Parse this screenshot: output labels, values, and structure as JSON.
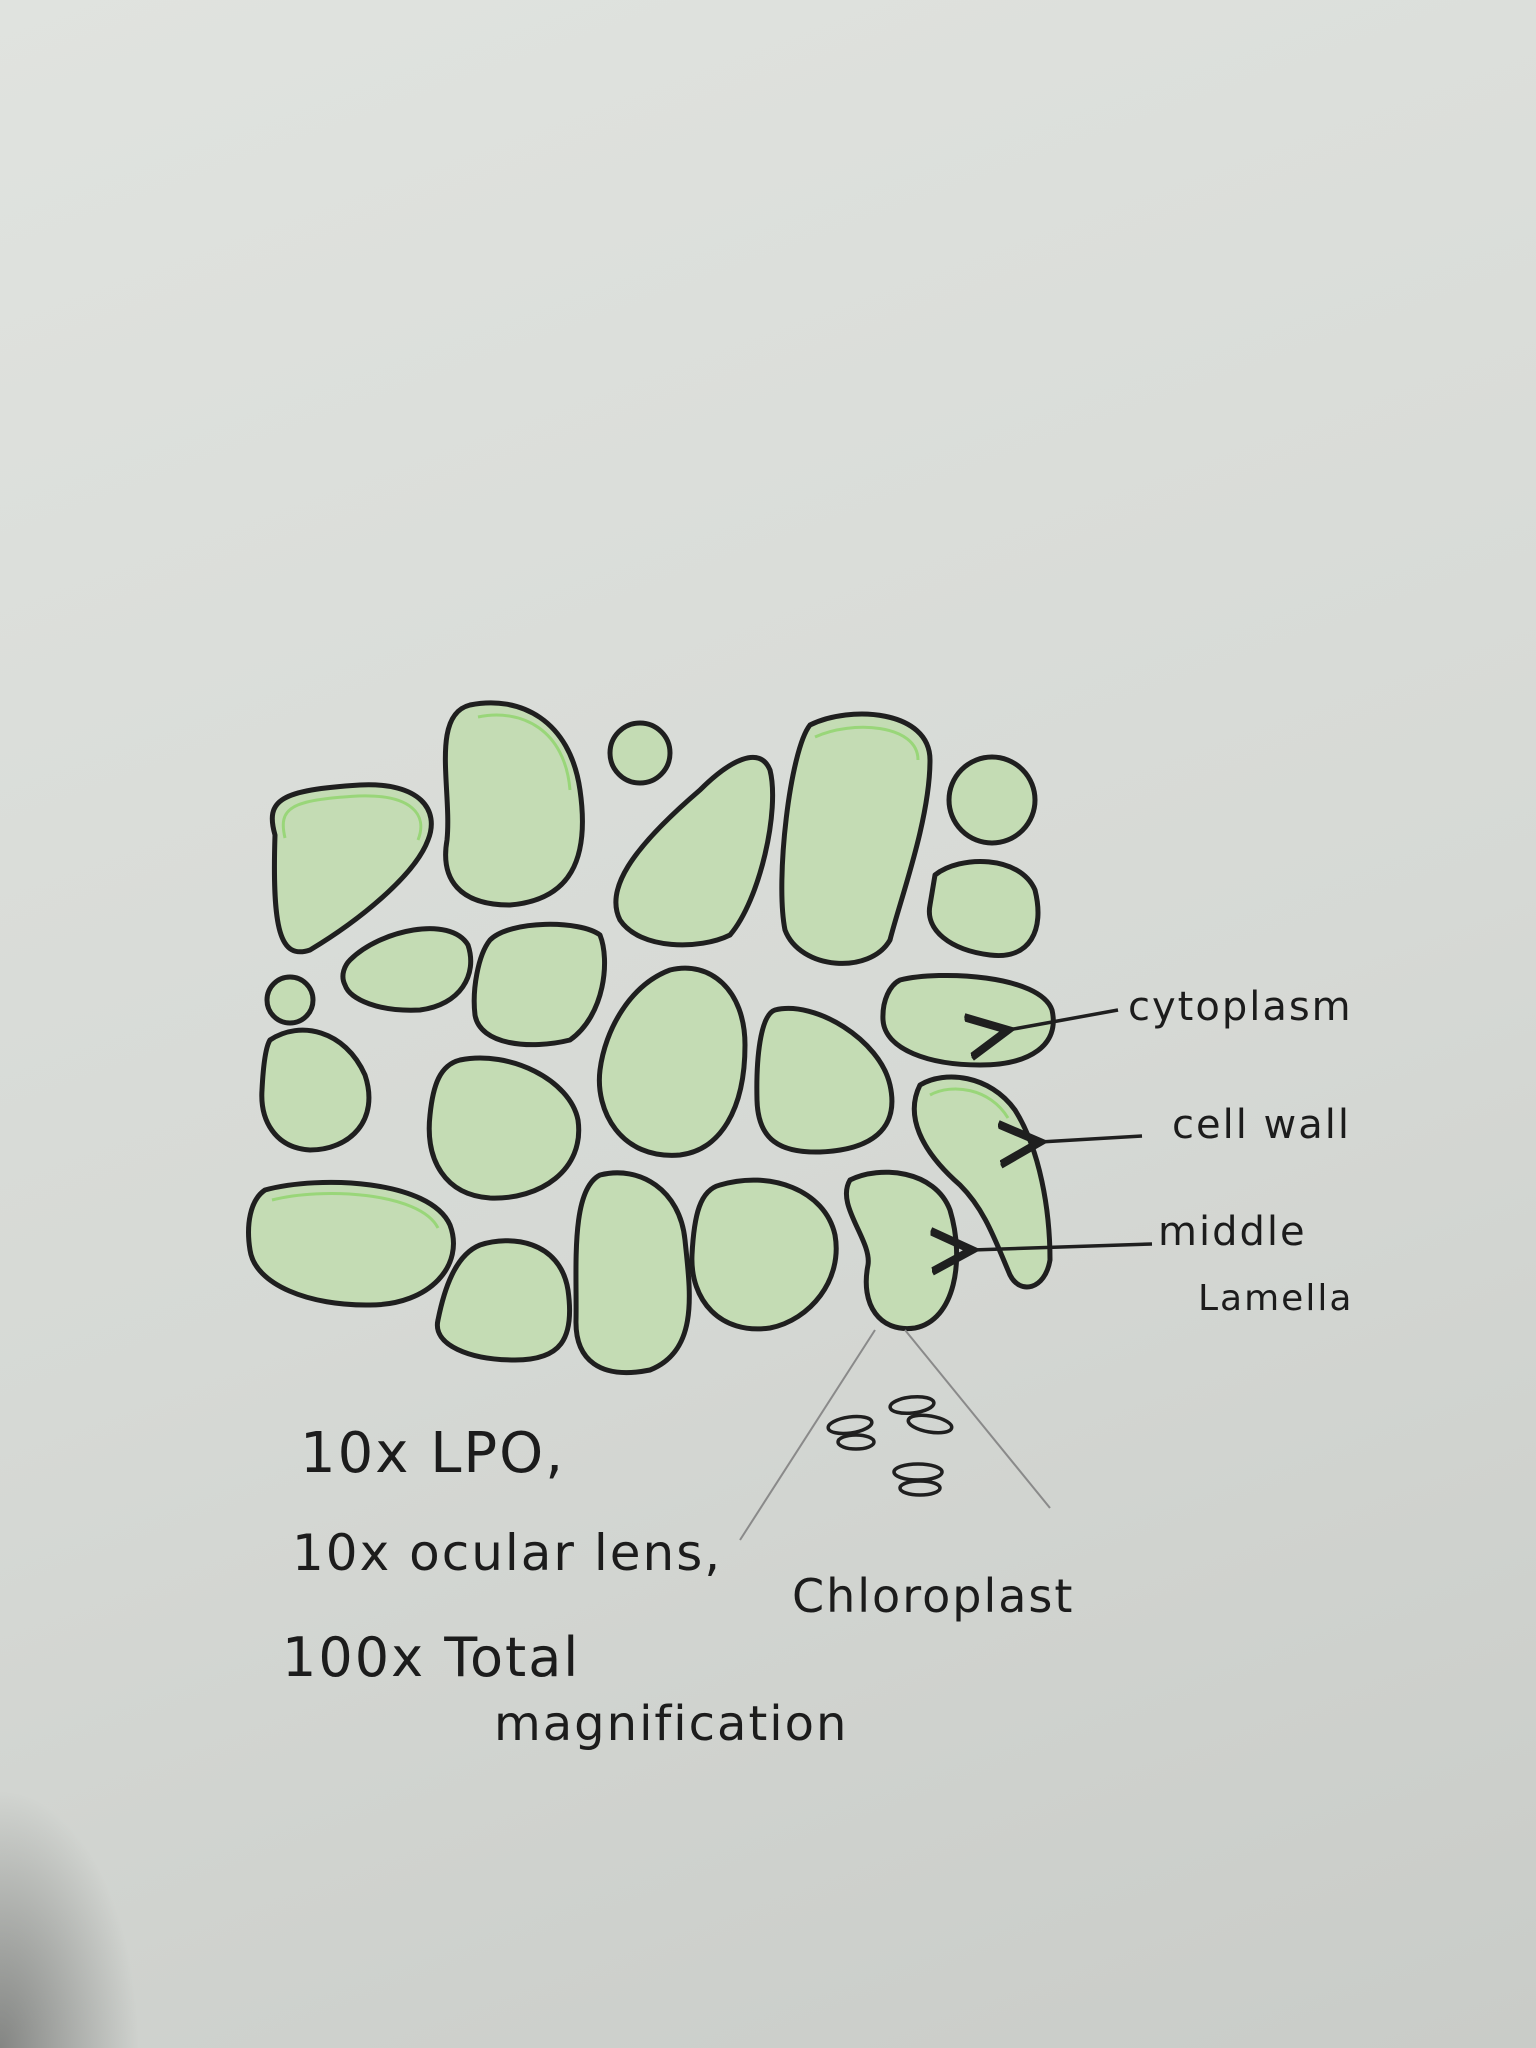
{
  "labels": {
    "cytoplasm": "cytoplasm",
    "cell_wall": "cell wall",
    "middle_lamella_line1": "middle",
    "middle_lamella_line2": "Lamella",
    "chloroplast": "Chloroplast"
  },
  "notes": {
    "line1": "10x LPO,",
    "line2": "10x ocular lens,",
    "line3": "100x Total",
    "line4": "magnification"
  },
  "colors": {
    "cell_fill": "#c4dcb4",
    "cell_rim": "#8fd46a",
    "outline": "#1f1f1f",
    "pencil": "#8a8a8a"
  }
}
